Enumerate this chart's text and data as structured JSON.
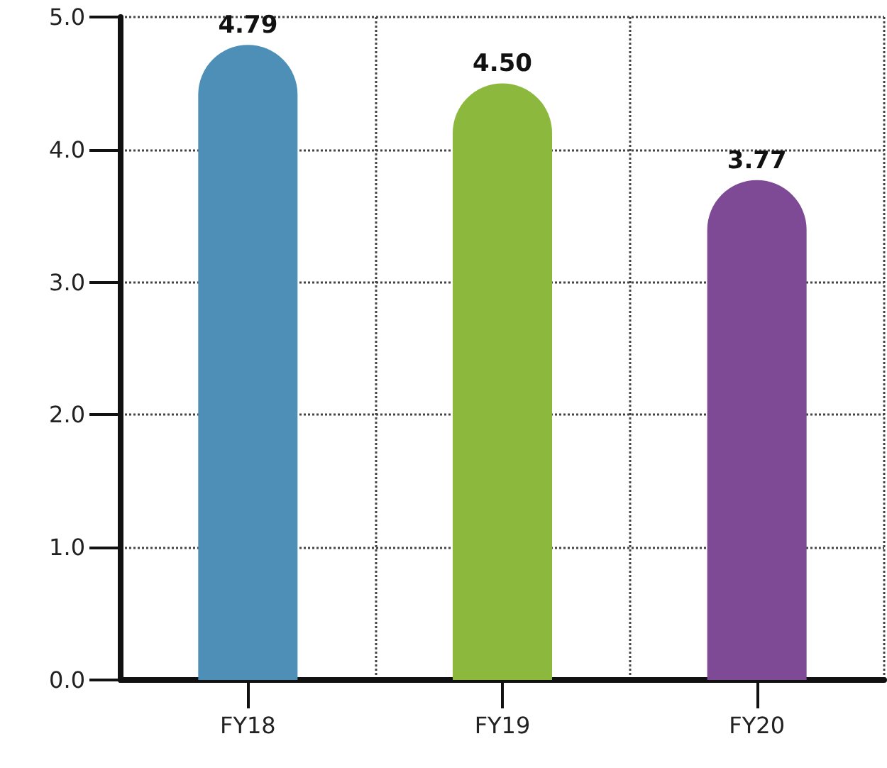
{
  "chart_data": {
    "type": "bar",
    "categories": [
      "FY18",
      "FY19",
      "FY20"
    ],
    "values": [
      4.79,
      4.5,
      3.77
    ],
    "value_labels": [
      "4.79",
      "4.50",
      "3.77"
    ],
    "colors": [
      "#4e8fb8",
      "#8cb83e",
      "#7e4a96"
    ],
    "ylim": [
      0,
      5
    ],
    "yticks": [
      {
        "value": 0,
        "label": "0.0"
      },
      {
        "value": 1,
        "label": "1.0"
      },
      {
        "value": 2,
        "label": "2.0"
      },
      {
        "value": 3,
        "label": "3.0"
      },
      {
        "value": 4,
        "label": "4.0"
      },
      {
        "value": 5,
        "label": "5.0"
      }
    ],
    "grid": true
  }
}
